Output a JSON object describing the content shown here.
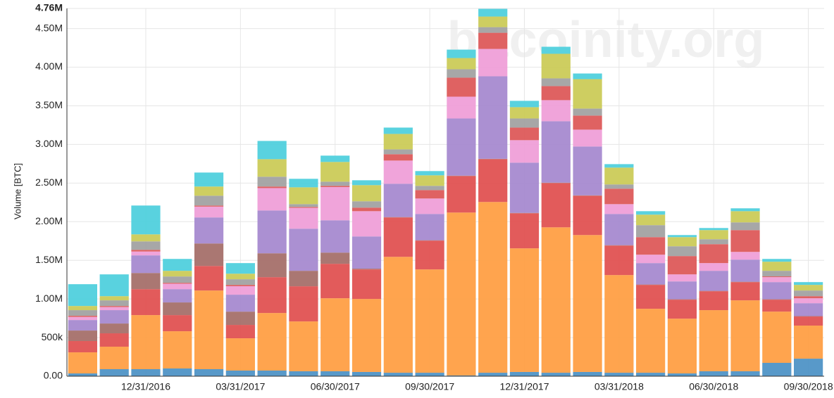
{
  "chart_data": {
    "type": "stacked-bar",
    "y_label": "Volume [BTC]",
    "watermark": "bitcoinity.org",
    "categories": [
      null,
      null,
      "12/31/2016",
      null,
      null,
      "03/31/2017",
      null,
      null,
      "06/30/2017",
      null,
      null,
      "09/30/2017",
      null,
      null,
      "12/31/2017",
      null,
      null,
      "03/31/2018",
      null,
      null,
      "06/30/2018",
      null,
      null,
      "09/30/2018"
    ],
    "ylim": [
      0,
      4760000
    ],
    "yticks": [
      {
        "value": 0,
        "label": "0.00"
      },
      {
        "value": 500000,
        "label": "500k"
      },
      {
        "value": 1000000,
        "label": "1.00M"
      },
      {
        "value": 1500000,
        "label": "1.50M"
      },
      {
        "value": 2000000,
        "label": "2.00M"
      },
      {
        "value": 2500000,
        "label": "2.50M"
      },
      {
        "value": 3000000,
        "label": "3.00M"
      },
      {
        "value": 3500000,
        "label": "3.50M"
      },
      {
        "value": 4000000,
        "label": "4.00M"
      },
      {
        "value": 4500000,
        "label": "4.50M"
      },
      {
        "value": 4760000,
        "label": "4.76M"
      }
    ],
    "grid": true,
    "series": [
      {
        "color": "#4f93c6",
        "values": [
          36000,
          91000,
          91000,
          100000,
          91000,
          73000,
          73000,
          64000,
          64000,
          55000,
          45000,
          45000,
          10000,
          45000,
          55000,
          45000,
          55000,
          45000,
          45000,
          36000,
          64000,
          64000,
          173000,
          227000
        ]
      },
      {
        "color": "#ff9f45",
        "values": [
          273000,
          291000,
          700000,
          482000,
          1018000,
          418000,
          745000,
          645000,
          945000,
          945000,
          1500000,
          1337000,
          2108000,
          2210000,
          1600000,
          1882000,
          1772000,
          1264000,
          828000,
          709000,
          791000,
          918000,
          663000,
          428000
        ]
      },
      {
        "color": "#e05252",
        "values": [
          146000,
          173000,
          336000,
          209000,
          318000,
          173000,
          464000,
          455000,
          446000,
          382000,
          510000,
          373000,
          473000,
          554000,
          454000,
          573000,
          509000,
          382000,
          309000,
          246000,
          245000,
          236000,
          155000,
          118000
        ]
      },
      {
        "color": "#a5706a",
        "values": [
          136000,
          127000,
          209000,
          164000,
          291000,
          172000,
          309000,
          200000,
          145000,
          10000,
          5000,
          5000,
          5000,
          5000,
          5000,
          5000,
          5000,
          5000,
          5000,
          5000,
          5000,
          5000,
          5000,
          5000
        ]
      },
      {
        "color": "#a78ad0",
        "values": [
          136000,
          173000,
          228000,
          172000,
          337000,
          219000,
          554000,
          545000,
          418000,
          417000,
          431000,
          340000,
          740000,
          1068000,
          650000,
          795000,
          632000,
          404000,
          277000,
          231000,
          259000,
          286000,
          222000,
          167000
        ]
      },
      {
        "color": "#ef9fd8",
        "values": [
          40000,
          40000,
          50000,
          70000,
          140000,
          110000,
          290000,
          270000,
          430000,
          327000,
          300000,
          200000,
          282000,
          354000,
          291000,
          273000,
          218000,
          127000,
          109000,
          91000,
          100000,
          100000,
          64000,
          64000
        ]
      },
      {
        "color": "#dd5a5a",
        "values": [
          15000,
          14000,
          22000,
          12000,
          14000,
          17000,
          20000,
          12000,
          16000,
          46000,
          82000,
          109000,
          246000,
          209000,
          163000,
          182000,
          182000,
          200000,
          227000,
          237000,
          245000,
          282000,
          10000,
          27000
        ]
      },
      {
        "color": "#a2a2a2",
        "values": [
          73000,
          73000,
          109000,
          82000,
          127000,
          73000,
          127000,
          36000,
          54000,
          82000,
          63000,
          55000,
          109000,
          73000,
          118000,
          100000,
          91000,
          55000,
          155000,
          127000,
          64000,
          100000,
          72000,
          73000
        ]
      },
      {
        "color": "#cbcb58",
        "values": [
          54000,
          54000,
          91000,
          73000,
          119000,
          72000,
          227000,
          218000,
          255000,
          209000,
          200000,
          136000,
          145000,
          137000,
          146000,
          318000,
          381000,
          218000,
          136000,
          118000,
          118000,
          145000,
          118000,
          73000
        ]
      },
      {
        "color": "#50d0dd",
        "values": [
          282000,
          282000,
          373000,
          154000,
          181000,
          137000,
          236000,
          110000,
          82000,
          63000,
          82000,
          55000,
          109000,
          100000,
          82000,
          91000,
          73000,
          45000,
          45000,
          27000,
          27000,
          37000,
          36000,
          36000
        ]
      }
    ]
  }
}
